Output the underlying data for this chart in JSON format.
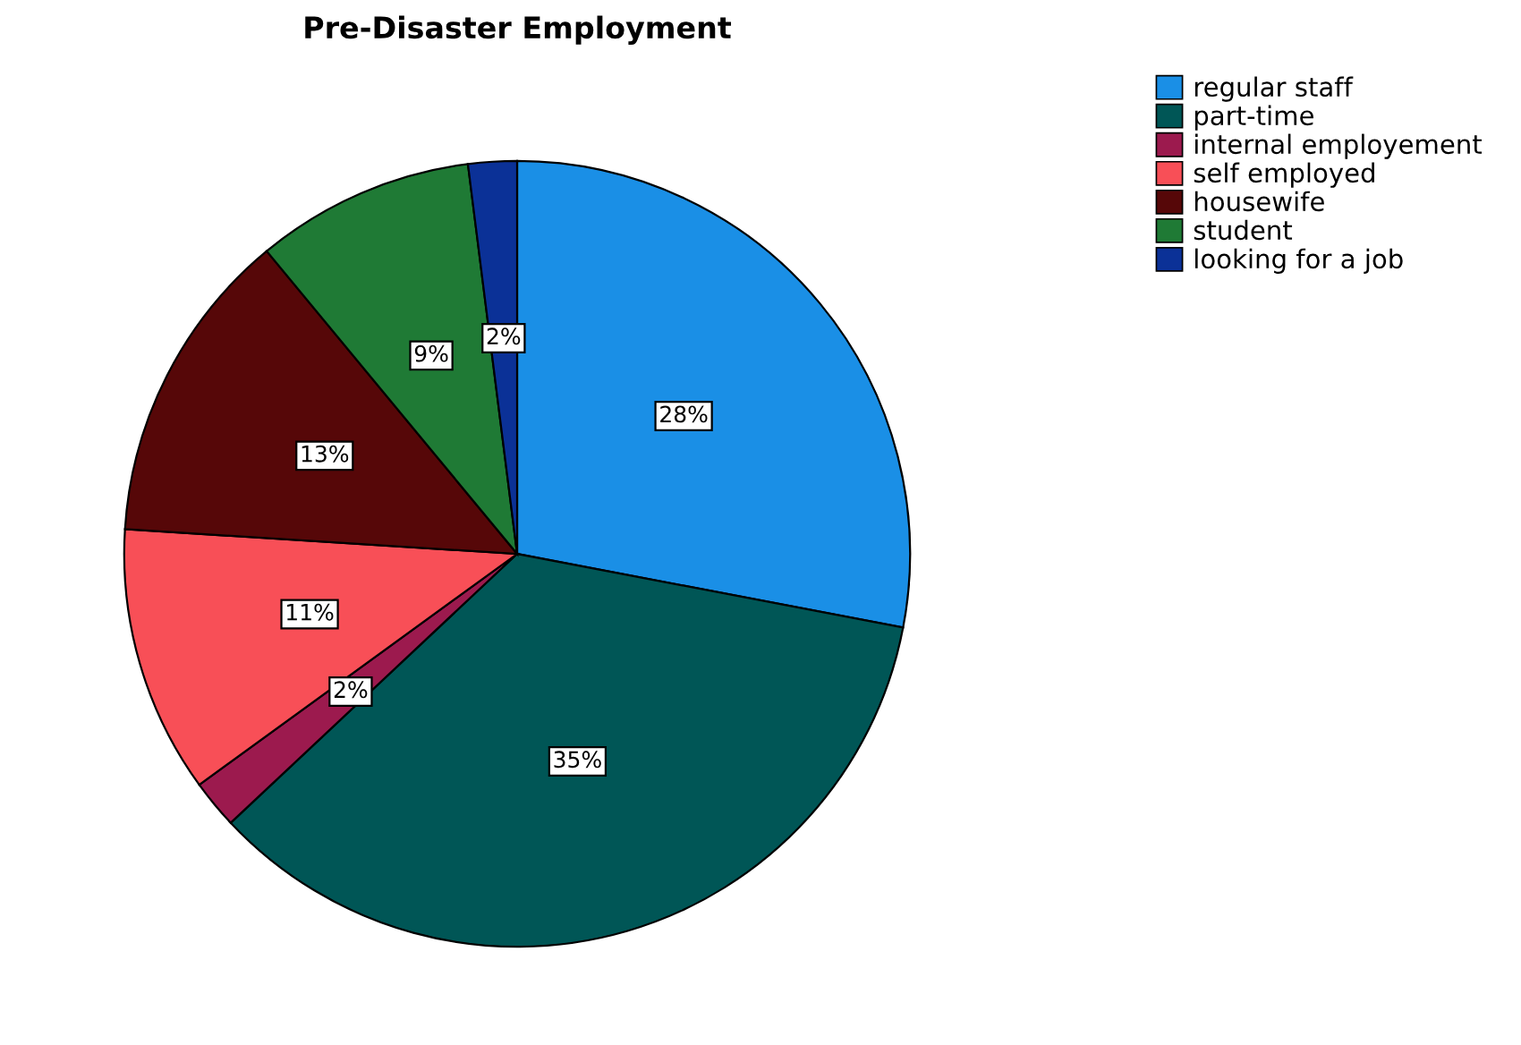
{
  "chart_data": {
    "type": "pie",
    "title": "Pre-Disaster Employment",
    "categories": [
      "regular staff",
      "part-time",
      "internal employement",
      "self employed",
      "housewife",
      "student",
      "looking for a job"
    ],
    "values": [
      28,
      35,
      2,
      11,
      13,
      9,
      2
    ],
    "value_labels": [
      "28%",
      "35%",
      "2%",
      "11%",
      "13%",
      "9%",
      "2%"
    ],
    "colors": [
      "#1a8fe6",
      "#005656",
      "#9c1a4e",
      "#f84f57",
      "#560708",
      "#1f7a35",
      "#0b3197"
    ],
    "legend": "top right"
  }
}
